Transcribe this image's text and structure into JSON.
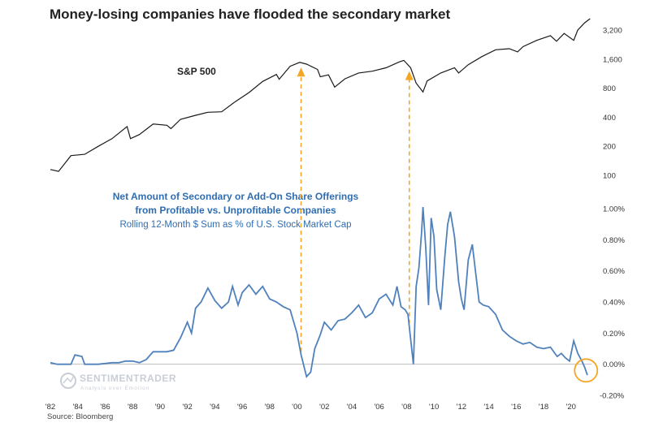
{
  "chart_data": {
    "type": "line",
    "title": "Money-losing companies have flooded the secondary market",
    "source": "Source: Bloomberg",
    "watermark": {
      "name": "SENTIMENTRADER",
      "tagline": "Analysis over Emotion"
    },
    "x_ticks": [
      "'82",
      "'84",
      "'86",
      "'88",
      "'90",
      "'92",
      "'94",
      "'96",
      "'98",
      "'00",
      "'02",
      "'04",
      "'06",
      "'08",
      "'10",
      "'12",
      "'14",
      "'16",
      "'18",
      "'20"
    ],
    "x_range": [
      1982,
      2021.5
    ],
    "colors": {
      "sp500": "#1a1a1a",
      "offerings": "#4f81bd",
      "arrow": "#f5a623",
      "highlight": "#f5a623",
      "zero_line": "#bfbfbf"
    },
    "upper_panel": {
      "series_name": "S&P 500",
      "scale": "log",
      "y_ticks": [
        "3,200",
        "1,600",
        "800",
        "400",
        "200",
        "100"
      ],
      "y_tick_values": [
        3200,
        1600,
        800,
        400,
        200,
        100
      ],
      "x": [
        1982.0,
        1982.6,
        1983.5,
        1984.5,
        1985.5,
        1986.5,
        1987.6,
        1987.85,
        1988.5,
        1989.5,
        1990.5,
        1990.8,
        1991.5,
        1992.5,
        1993.5,
        1994.5,
        1995.5,
        1996.5,
        1997.5,
        1998.5,
        1998.7,
        1999.5,
        2000.2,
        2000.7,
        2001.5,
        2001.7,
        2002.3,
        2002.75,
        2003.5,
        2004.5,
        2005.5,
        2006.5,
        2007.5,
        2007.8,
        2008.3,
        2008.7,
        2009.2,
        2009.5,
        2010.5,
        2011.5,
        2011.8,
        2012.5,
        2013.5,
        2014.5,
        2015.5,
        2016.1,
        2016.5,
        2017.5,
        2018.5,
        2018.95,
        2019.5,
        2020.2,
        2020.5,
        2021.0,
        2021.4
      ],
      "values": [
        115,
        110,
        160,
        165,
        200,
        240,
        320,
        240,
        265,
        340,
        330,
        305,
        380,
        415,
        450,
        455,
        580,
        720,
        940,
        1110,
        990,
        1350,
        1480,
        1420,
        1250,
        1050,
        1100,
        820,
        1000,
        1150,
        1200,
        1300,
        1500,
        1550,
        1300,
        900,
        730,
        950,
        1150,
        1300,
        1150,
        1400,
        1700,
        2000,
        2050,
        1900,
        2150,
        2500,
        2800,
        2450,
        2950,
        2500,
        3200,
        3800,
        4200
      ]
    },
    "lower_panel": {
      "annotation_title": [
        "Net Amount of Secondary or Add-On Share Offerings",
        "from Profitable vs. Unprofitable Companies"
      ],
      "annotation_subtitle": "Rolling 12-Month $ Sum as % of U.S. Stock Market Cap",
      "y_ticks": [
        "1.00%",
        "0.80%",
        "0.60%",
        "0.40%",
        "0.20%",
        "0.00%",
        "-0.20%"
      ],
      "y_tick_values": [
        1.0,
        0.8,
        0.6,
        0.4,
        0.2,
        0.0,
        -0.2
      ],
      "ylim": [
        -0.2,
        1.0
      ],
      "x": [
        1982.0,
        1982.5,
        1983.0,
        1983.5,
        1983.8,
        1984.3,
        1984.5,
        1985.5,
        1986.5,
        1987.0,
        1987.5,
        1988.0,
        1988.5,
        1989.0,
        1989.5,
        1990.5,
        1991.0,
        1991.5,
        1992.0,
        1992.3,
        1992.6,
        1993.0,
        1993.5,
        1994.0,
        1994.5,
        1995.0,
        1995.3,
        1995.7,
        1996.0,
        1996.5,
        1997.0,
        1997.5,
        1998.0,
        1998.5,
        1999.0,
        1999.5,
        2000.0,
        2000.3,
        2000.7,
        2001.0,
        2001.3,
        2001.7,
        2002.0,
        2002.5,
        2003.0,
        2003.5,
        2004.0,
        2004.5,
        2005.0,
        2005.5,
        2006.0,
        2006.5,
        2007.0,
        2007.3,
        2007.6,
        2007.9,
        2008.1,
        2008.25,
        2008.5,
        2008.7,
        2008.9,
        2009.1,
        2009.2,
        2009.4,
        2009.6,
        2009.8,
        2010.0,
        2010.2,
        2010.5,
        2010.8,
        2011.0,
        2011.2,
        2011.5,
        2011.8,
        2012.0,
        2012.2,
        2012.5,
        2012.8,
        2013.0,
        2013.3,
        2013.6,
        2014.0,
        2014.5,
        2015.0,
        2015.5,
        2016.0,
        2016.5,
        2017.0,
        2017.5,
        2018.0,
        2018.5,
        2019.0,
        2019.3,
        2019.6,
        2019.9,
        2020.2,
        2020.5,
        2020.8,
        2021.0,
        2021.2
      ],
      "values": [
        0.01,
        0.0,
        0.0,
        0.0,
        0.06,
        0.05,
        0.0,
        0.0,
        0.01,
        0.01,
        0.02,
        0.02,
        0.01,
        0.03,
        0.08,
        0.08,
        0.09,
        0.17,
        0.27,
        0.2,
        0.36,
        0.4,
        0.49,
        0.41,
        0.36,
        0.4,
        0.5,
        0.38,
        0.46,
        0.51,
        0.45,
        0.5,
        0.42,
        0.4,
        0.37,
        0.35,
        0.2,
        0.06,
        -0.08,
        -0.05,
        0.1,
        0.19,
        0.27,
        0.22,
        0.28,
        0.29,
        0.33,
        0.38,
        0.3,
        0.33,
        0.42,
        0.45,
        0.38,
        0.5,
        0.37,
        0.35,
        0.32,
        0.2,
        0.0,
        0.5,
        0.62,
        0.85,
        1.01,
        0.75,
        0.38,
        0.94,
        0.82,
        0.48,
        0.35,
        0.7,
        0.9,
        0.98,
        0.82,
        0.53,
        0.42,
        0.35,
        0.67,
        0.77,
        0.62,
        0.4,
        0.38,
        0.37,
        0.32,
        0.22,
        0.18,
        0.15,
        0.13,
        0.14,
        0.11,
        0.1,
        0.11,
        0.05,
        0.07,
        0.04,
        0.02,
        0.15,
        0.07,
        0.02,
        -0.02,
        -0.07
      ]
    },
    "arrows_at_x": [
      2000.3,
      2008.2
    ],
    "highlight_at": {
      "x": 2021.1,
      "y": -0.04
    }
  }
}
